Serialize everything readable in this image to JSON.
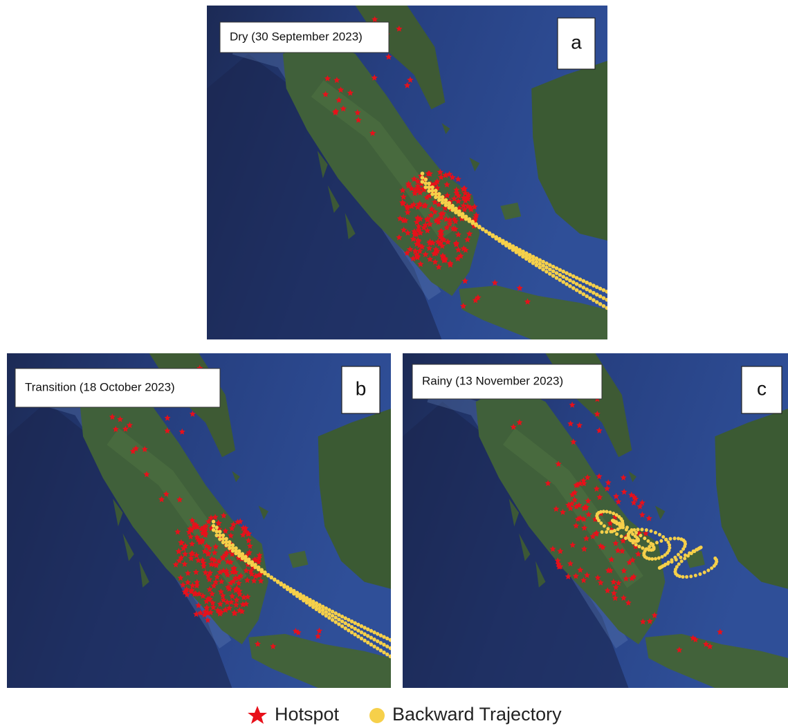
{
  "panels": [
    {
      "title": "Dry (30 September 2023)",
      "letter": "a"
    },
    {
      "title": "Transition (18 October 2023)",
      "letter": "b"
    },
    {
      "title": "Rainy (13 November 2023)",
      "letter": "c"
    }
  ],
  "legend": [
    {
      "label": "Hotspot"
    },
    {
      "label": "Backward Trajectory"
    }
  ]
}
